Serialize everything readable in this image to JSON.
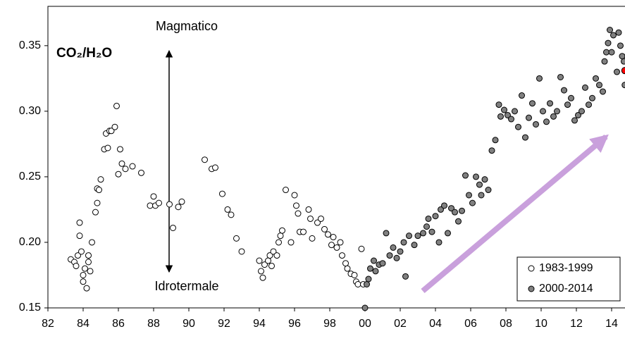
{
  "chart_data": {
    "type": "scatter",
    "title": "CO₂/H₂O",
    "annotations": [
      {
        "text": "Magmatico",
        "color": "#ff0000"
      },
      {
        "text": "Idrotermale",
        "color": "#4472c4"
      }
    ],
    "xlim": [
      1982,
      2014.8
    ],
    "ylim": [
      0.15,
      0.38
    ],
    "xticks": [
      {
        "value": 1982,
        "label": "82"
      },
      {
        "value": 1984,
        "label": "84"
      },
      {
        "value": 1986,
        "label": "86"
      },
      {
        "value": 1988,
        "label": "88"
      },
      {
        "value": 1990,
        "label": "90"
      },
      {
        "value": 1992,
        "label": "92"
      },
      {
        "value": 1994,
        "label": "94"
      },
      {
        "value": 1996,
        "label": "96"
      },
      {
        "value": 1998,
        "label": "98"
      },
      {
        "value": 2000,
        "label": "00"
      },
      {
        "value": 2002,
        "label": "02"
      },
      {
        "value": 2004,
        "label": "04"
      },
      {
        "value": 2006,
        "label": "06"
      },
      {
        "value": 2008,
        "label": "08"
      },
      {
        "value": 2010,
        "label": "10"
      },
      {
        "value": 2012,
        "label": "12"
      },
      {
        "value": 2014,
        "label": "14"
      }
    ],
    "yticks": [
      0.15,
      {
        "value": 0.2,
        "label": "0.20"
      },
      0.25,
      {
        "value": 0.3,
        "label": "0.30"
      },
      0.35
    ],
    "grid": false,
    "legend": "lower right",
    "series": [
      {
        "name": "1983-1999",
        "color": "#ffffff",
        "x": [
          1983.3,
          1983.5,
          1983.6,
          1983.7,
          1983.8,
          1983.8,
          1983.9,
          1984.0,
          1984.0,
          1984.1,
          1984.2,
          1984.3,
          1984.3,
          1984.4,
          1984.5,
          1984.7,
          1984.8,
          1984.8,
          1984.9,
          1985.0,
          1985.2,
          1985.3,
          1985.4,
          1985.5,
          1985.6,
          1985.8,
          1985.9,
          1986.0,
          1986.1,
          1986.2,
          1986.4,
          1986.8,
          1987.3,
          1987.8,
          1988.0,
          1988.1,
          1988.3,
          1988.9,
          1989.1,
          1989.4,
          1989.6,
          1990.9,
          1991.3,
          1991.5,
          1991.9,
          1992.2,
          1992.4,
          1992.7,
          1993.0,
          1994.0,
          1994.1,
          1994.2,
          1994.3,
          1994.5,
          1994.6,
          1994.7,
          1994.8,
          1995.0,
          1995.1,
          1995.2,
          1995.3,
          1995.5,
          1995.8,
          1996.0,
          1996.1,
          1996.2,
          1996.3,
          1996.5,
          1996.8,
          1996.9,
          1997.0,
          1997.3,
          1997.5,
          1997.7,
          1997.9,
          1998.1,
          1998.2,
          1998.4,
          1998.6,
          1998.7,
          1998.9,
          1999.0,
          1999.2,
          1999.4,
          1999.5,
          1999.6,
          1999.8,
          1999.9
        ],
        "values": [
          0.187,
          0.185,
          0.182,
          0.19,
          0.215,
          0.205,
          0.193,
          0.175,
          0.17,
          0.18,
          0.165,
          0.185,
          0.19,
          0.178,
          0.2,
          0.223,
          0.23,
          0.241,
          0.24,
          0.248,
          0.271,
          0.283,
          0.272,
          0.285,
          0.285,
          0.288,
          0.304,
          0.252,
          0.271,
          0.26,
          0.256,
          0.258,
          0.253,
          0.228,
          0.235,
          0.228,
          0.23,
          0.229,
          0.211,
          0.227,
          0.231,
          0.263,
          0.256,
          0.257,
          0.237,
          0.225,
          0.221,
          0.203,
          0.193,
          0.186,
          0.178,
          0.173,
          0.183,
          0.186,
          0.19,
          0.182,
          0.193,
          0.19,
          0.2,
          0.205,
          0.209,
          0.24,
          0.2,
          0.236,
          0.228,
          0.222,
          0.208,
          0.208,
          0.225,
          0.218,
          0.203,
          0.215,
          0.218,
          0.21,
          0.206,
          0.198,
          0.204,
          0.196,
          0.2,
          0.19,
          0.184,
          0.18,
          0.176,
          0.175,
          0.17,
          0.168,
          0.195,
          0.168
        ]
      },
      {
        "name": "2000-2014",
        "color": "#808080",
        "x": [
          2000.0,
          2000.1,
          2000.2,
          2000.3,
          2000.5,
          2000.6,
          2000.8,
          2001.0,
          2001.2,
          2001.4,
          2001.6,
          2001.8,
          2002.0,
          2002.2,
          2002.3,
          2002.5,
          2002.8,
          2003.0,
          2003.3,
          2003.5,
          2003.6,
          2003.8,
          2004.0,
          2004.2,
          2004.3,
          2004.5,
          2004.7,
          2004.9,
          2005.1,
          2005.3,
          2005.5,
          2005.7,
          2005.9,
          2006.1,
          2006.3,
          2006.5,
          2006.6,
          2006.8,
          2007.0,
          2007.2,
          2007.4,
          2007.6,
          2007.7,
          2007.9,
          2008.1,
          2008.3,
          2008.5,
          2008.7,
          2008.9,
          2009.1,
          2009.3,
          2009.5,
          2009.7,
          2009.9,
          2010.1,
          2010.3,
          2010.5,
          2010.7,
          2010.9,
          2011.1,
          2011.3,
          2011.5,
          2011.7,
          2011.9,
          2012.1,
          2012.3,
          2012.5,
          2012.7,
          2012.9,
          2013.1,
          2013.3,
          2013.5,
          2013.6,
          2013.7,
          2013.8,
          2013.9,
          2014.0,
          2014.1,
          2014.3,
          2014.4,
          2014.5,
          2014.6,
          2014.7,
          2014.75
        ],
        "values": [
          0.15,
          0.168,
          0.172,
          0.18,
          0.186,
          0.178,
          0.183,
          0.184,
          0.207,
          0.19,
          0.196,
          0.188,
          0.193,
          0.2,
          0.174,
          0.205,
          0.198,
          0.205,
          0.207,
          0.212,
          0.218,
          0.208,
          0.22,
          0.2,
          0.225,
          0.228,
          0.207,
          0.226,
          0.223,
          0.216,
          0.224,
          0.251,
          0.236,
          0.23,
          0.25,
          0.244,
          0.236,
          0.248,
          0.24,
          0.27,
          0.278,
          0.305,
          0.296,
          0.301,
          0.297,
          0.294,
          0.3,
          0.288,
          0.312,
          0.28,
          0.295,
          0.306,
          0.29,
          0.325,
          0.3,
          0.292,
          0.306,
          0.296,
          0.3,
          0.326,
          0.316,
          0.305,
          0.31,
          0.293,
          0.297,
          0.3,
          0.318,
          0.305,
          0.31,
          0.325,
          0.32,
          0.315,
          0.338,
          0.345,
          0.352,
          0.362,
          0.345,
          0.358,
          0.33,
          0.36,
          0.35,
          0.342,
          0.338,
          0.32
        ]
      }
    ],
    "highlight": {
      "x": 2014.75,
      "y": 0.331,
      "color": "#ff0000"
    }
  }
}
